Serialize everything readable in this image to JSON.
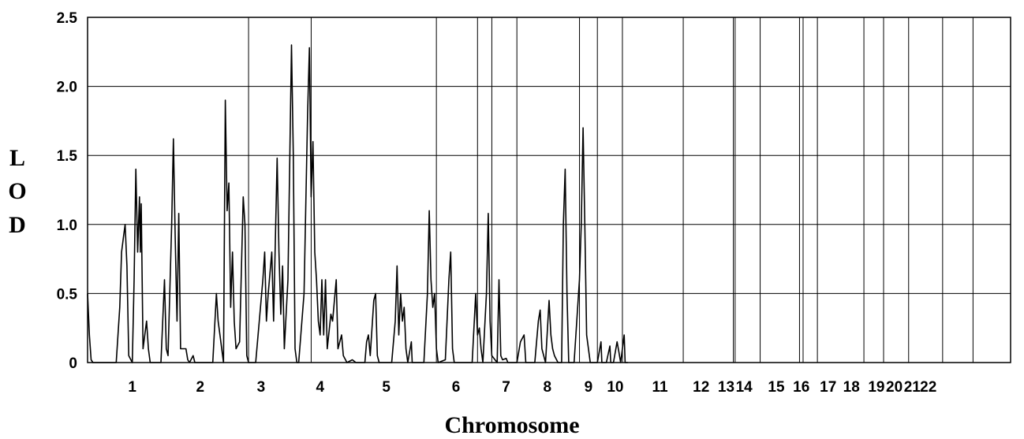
{
  "chart_data": {
    "type": "line",
    "title": "",
    "xlabel": "Chromosome",
    "ylabel": "LOD",
    "ylabel_letters": [
      "L",
      "O",
      "D"
    ],
    "ylim": [
      0,
      2.5
    ],
    "yticks": [
      0,
      0.5,
      1.0,
      1.5,
      2.0,
      2.5
    ],
    "ytick_labels": [
      "0",
      "0.5",
      "1.0",
      "1.5",
      "2.0",
      "2.5"
    ],
    "grid": true,
    "x_boundaries": [
      0,
      90,
      125,
      195,
      218,
      226,
      240,
      275,
      285,
      299,
      333,
      361,
      362,
      376,
      398,
      400,
      408,
      434,
      445,
      459,
      478,
      495,
      516
    ],
    "chromosomes": [
      {
        "label": "1",
        "center": 25
      },
      {
        "label": "2",
        "center": 63
      },
      {
        "label": "3",
        "center": 97
      },
      {
        "label": "4",
        "center": 130
      },
      {
        "label": "5",
        "center": 167
      },
      {
        "label": "6",
        "center": 206
      },
      {
        "label": "7",
        "center": 234
      },
      {
        "label": "8",
        "center": 257
      },
      {
        "label": "9",
        "center": 280
      },
      {
        "label": "10",
        "center": 295
      },
      {
        "label": "11",
        "center": 320
      },
      {
        "label": "12",
        "center": 343
      },
      {
        "label": "13",
        "center": 357
      },
      {
        "label": "14",
        "center": 367
      },
      {
        "label": "15",
        "center": 385
      },
      {
        "label": "16",
        "center": 399
      },
      {
        "label": "17",
        "center": 414
      },
      {
        "label": "18",
        "center": 427
      },
      {
        "label": "19",
        "center": 441
      },
      {
        "label": "20",
        "center": 451
      },
      {
        "label": "21",
        "center": 461
      },
      {
        "label": "22",
        "center": 470
      }
    ],
    "series": [
      {
        "color": "#000000",
        "points": [
          [
            0,
            0.5
          ],
          [
            1,
            0.2
          ],
          [
            2,
            0.02
          ],
          [
            3,
            0
          ],
          [
            10,
            0
          ],
          [
            16,
            0
          ],
          [
            18,
            0.4
          ],
          [
            19,
            0.8
          ],
          [
            20,
            0.9
          ],
          [
            21,
            1.0
          ],
          [
            22,
            0.7
          ],
          [
            23,
            0.05
          ],
          [
            25,
            0
          ],
          [
            26,
            0.6
          ],
          [
            27,
            1.4
          ],
          [
            28,
            0.8
          ],
          [
            29,
            1.2
          ],
          [
            29.5,
            0.8
          ],
          [
            30,
            1.15
          ],
          [
            31,
            0.1
          ],
          [
            33,
            0.3
          ],
          [
            34,
            0.1
          ],
          [
            35,
            0
          ],
          [
            41,
            0
          ],
          [
            43,
            0.6
          ],
          [
            44,
            0.1
          ],
          [
            45,
            0.05
          ],
          [
            47,
            1.0
          ],
          [
            48,
            1.62
          ],
          [
            49,
            0.9
          ],
          [
            50,
            0.3
          ],
          [
            51,
            1.08
          ],
          [
            52,
            0.1
          ],
          [
            53,
            0.1
          ],
          [
            55,
            0.1
          ],
          [
            56,
            0.02
          ],
          [
            57,
            0
          ],
          [
            59,
            0.05
          ],
          [
            60,
            0
          ],
          [
            70,
            0
          ],
          [
            72,
            0.5
          ],
          [
            73,
            0.3
          ],
          [
            74,
            0.2
          ],
          [
            76,
            0
          ],
          [
            77,
            1.9
          ],
          [
            78,
            1.1
          ],
          [
            79,
            1.3
          ],
          [
            80,
            0.4
          ],
          [
            81,
            0.8
          ],
          [
            82,
            0.3
          ],
          [
            83,
            0.1
          ],
          [
            85,
            0.15
          ],
          [
            87,
            1.2
          ],
          [
            88,
            1.0
          ],
          [
            89,
            0.05
          ],
          [
            90,
            0
          ],
          [
            94,
            0
          ],
          [
            98,
            0.6
          ],
          [
            99,
            0.8
          ],
          [
            100,
            0.3
          ],
          [
            101,
            0.5
          ],
          [
            103,
            0.8
          ],
          [
            104,
            0.3
          ],
          [
            106,
            1.48
          ],
          [
            107,
            0.8
          ],
          [
            108,
            0.35
          ],
          [
            109,
            0.7
          ],
          [
            110,
            0.1
          ],
          [
            112,
            0.6
          ],
          [
            114,
            2.3
          ],
          [
            115,
            1.5
          ],
          [
            116,
            0.1
          ],
          [
            117,
            0
          ],
          [
            118,
            0
          ],
          [
            121,
            0.5
          ],
          [
            123,
            1.8
          ],
          [
            124,
            2.28
          ],
          [
            125,
            1.2
          ],
          [
            126,
            1.6
          ],
          [
            127,
            0.8
          ],
          [
            128,
            0.6
          ],
          [
            129,
            0.3
          ],
          [
            130,
            0.2
          ],
          [
            131,
            0.6
          ],
          [
            132,
            0.2
          ],
          [
            133,
            0.6
          ],
          [
            134,
            0.1
          ],
          [
            136,
            0.35
          ],
          [
            137,
            0.3
          ],
          [
            138,
            0.45
          ],
          [
            139,
            0.6
          ],
          [
            140,
            0.1
          ],
          [
            142,
            0.2
          ],
          [
            143,
            0.05
          ],
          [
            145,
            0
          ],
          [
            148,
            0.02
          ],
          [
            150,
            0
          ],
          [
            155,
            0
          ],
          [
            156,
            0.15
          ],
          [
            157,
            0.2
          ],
          [
            158,
            0.05
          ],
          [
            160,
            0.45
          ],
          [
            161,
            0.5
          ],
          [
            162,
            0.05
          ],
          [
            163,
            0
          ],
          [
            170,
            0
          ],
          [
            172,
            0.3
          ],
          [
            173,
            0.7
          ],
          [
            174,
            0.2
          ],
          [
            175,
            0.5
          ],
          [
            176,
            0.3
          ],
          [
            177,
            0.4
          ],
          [
            178,
            0.1
          ],
          [
            179,
            0
          ],
          [
            181,
            0.15
          ],
          [
            181.5,
            0
          ],
          [
            188,
            0
          ],
          [
            190,
            0.5
          ],
          [
            191,
            1.1
          ],
          [
            192,
            0.6
          ],
          [
            193,
            0.4
          ],
          [
            194,
            0.5
          ],
          [
            195,
            0.1
          ],
          [
            196,
            0
          ],
          [
            200,
            0.02
          ],
          [
            202,
            0.6
          ],
          [
            203,
            0.8
          ],
          [
            204,
            0.1
          ],
          [
            205,
            0
          ],
          [
            215,
            0
          ],
          [
            217,
            0.5
          ],
          [
            218,
            0.2
          ],
          [
            219,
            0.25
          ],
          [
            220,
            0.1
          ],
          [
            221,
            0
          ],
          [
            223,
            0.5
          ],
          [
            224,
            1.08
          ],
          [
            225,
            0.3
          ],
          [
            226,
            0.05
          ],
          [
            229,
            0
          ],
          [
            230,
            0.6
          ],
          [
            231,
            0.05
          ],
          [
            232,
            0.02
          ],
          [
            234,
            0.03
          ],
          [
            235,
            0
          ],
          [
            240,
            0
          ],
          [
            242,
            0.15
          ],
          [
            244,
            0.2
          ],
          [
            245,
            0
          ],
          [
            250,
            0
          ],
          [
            252,
            0.3
          ],
          [
            253,
            0.38
          ],
          [
            254,
            0.1
          ],
          [
            256,
            0
          ],
          [
            258,
            0.45
          ],
          [
            259,
            0.2
          ],
          [
            260,
            0.1
          ],
          [
            261,
            0.05
          ],
          [
            263,
            0
          ],
          [
            265,
            0
          ],
          [
            266,
            1.0
          ],
          [
            267,
            1.4
          ],
          [
            268,
            0.5
          ],
          [
            269,
            0
          ],
          [
            272,
            0
          ],
          [
            275,
            0.6
          ],
          [
            276,
            1.0
          ],
          [
            277,
            1.7
          ],
          [
            278,
            1.0
          ],
          [
            279,
            0.2
          ],
          [
            281,
            0
          ],
          [
            285,
            0
          ],
          [
            287,
            0.15
          ],
          [
            287.5,
            0
          ],
          [
            290,
            0
          ],
          [
            292,
            0.12
          ],
          [
            292.5,
            0
          ],
          [
            294,
            0
          ],
          [
            296,
            0.15
          ],
          [
            297,
            0.08
          ],
          [
            298,
            0
          ],
          [
            300,
            0.2
          ],
          [
            300.5,
            0
          ],
          [
            302,
            0
          ]
        ]
      }
    ]
  }
}
